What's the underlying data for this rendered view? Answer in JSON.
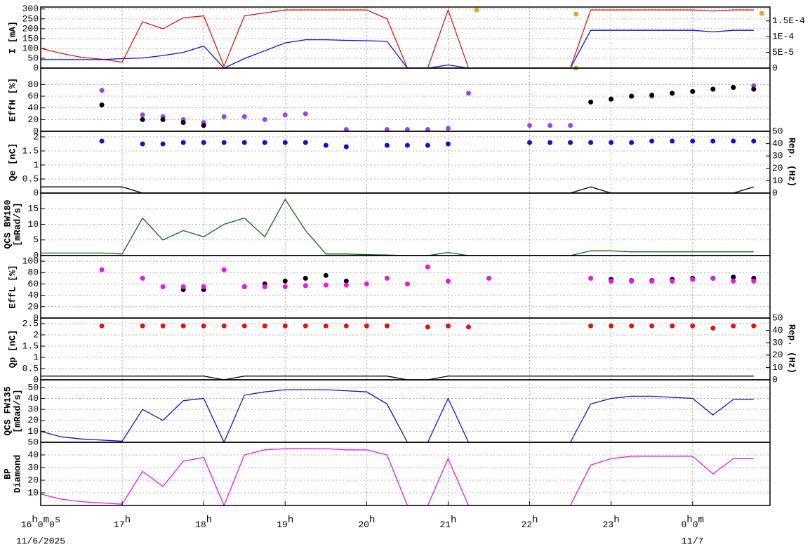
{
  "time_axis": {
    "xlim": [
      16,
      24.95
    ],
    "xticks": [
      {
        "value": 16,
        "label": "16h0m0s"
      },
      {
        "value": 17,
        "label": "17h"
      },
      {
        "value": 18,
        "label": "18h"
      },
      {
        "value": 19,
        "label": "19h"
      },
      {
        "value": 20,
        "label": "20h"
      },
      {
        "value": 21,
        "label": "21h"
      },
      {
        "value": 22,
        "label": "22h"
      },
      {
        "value": 23,
        "label": "23h"
      },
      {
        "value": 24,
        "label": "0h0m"
      }
    ],
    "date_labels": [
      {
        "value": 16,
        "label": "11/6/2025"
      },
      {
        "value": 24,
        "label": "11/7"
      }
    ]
  },
  "chart_data": [
    {
      "type": "line",
      "ylabel": [
        "I [mA]"
      ],
      "ylim": [
        0,
        310
      ],
      "yticks": [
        0,
        50,
        100,
        150,
        200,
        250,
        300
      ],
      "y2lim": [
        0,
        0.000194
      ],
      "y2ticks": [
        0,
        {
          "value": 5e-05,
          "label": "5E-5"
        },
        {
          "value": 0.0001,
          "label": "1E-4"
        },
        {
          "value": 0.00015,
          "label": "1.5E-4"
        }
      ],
      "grid": true,
      "x": [
        16,
        16.25,
        16.5,
        16.75,
        17,
        17.25,
        17.5,
        17.75,
        18,
        18.25,
        18.5,
        18.75,
        19,
        19.25,
        19.5,
        19.75,
        20,
        20.25,
        20.5,
        20.75,
        21,
        21.25,
        21.5,
        21.75,
        22,
        22.25,
        22.5,
        22.75,
        23,
        23.25,
        23.5,
        23.75,
        24,
        24.25,
        24.5,
        24.75
      ],
      "series": [
        {
          "color": "#e8120c",
          "values": [
            100,
            75,
            55,
            45,
            30,
            235,
            200,
            255,
            265,
            10,
            265,
            280,
            295,
            295,
            295,
            295,
            295,
            250,
            0,
            0,
            295,
            0,
            0,
            0,
            0,
            0,
            0,
            295,
            295,
            295,
            295,
            295,
            295,
            290,
            295,
            295
          ]
        },
        {
          "color": "#1010d8",
          "axis": "y2",
          "values": [
            2.7e-05,
            2.7e-05,
            2.7e-05,
            2.7e-05,
            3e-05,
            3.2e-05,
            4e-05,
            5e-05,
            7e-05,
            0,
            3e-05,
            5.5e-05,
            8e-05,
            9e-05,
            9e-05,
            8.8e-05,
            8.7e-05,
            8.5e-05,
            0,
            0,
            1e-05,
            0,
            0,
            0,
            0,
            0,
            0,
            0.00012,
            0.00012,
            0.00012,
            0.00012,
            0.00012,
            0.00012,
            0.000115,
            0.00012,
            0.00012
          ]
        },
        {
          "color": "#f0a020",
          "mode": "scatter",
          "x": [
            21.35,
            22.57,
            22.57,
            24.85
          ],
          "values": [
            295,
            274,
            0,
            278
          ]
        }
      ]
    },
    {
      "type": "scatter",
      "ylabel": [
        "EffH [%]"
      ],
      "ylim": [
        0,
        108
      ],
      "yticks": [
        0,
        20,
        40,
        60,
        80
      ],
      "grid": true,
      "x": [
        16,
        16.25,
        16.5,
        16.75,
        17,
        17.25,
        17.5,
        17.75,
        18,
        18.25,
        18.5,
        18.75,
        19,
        19.25,
        19.5,
        19.75,
        20,
        20.25,
        20.5,
        20.75,
        21,
        21.25,
        21.5,
        21.75,
        22,
        22.25,
        22.5,
        22.75,
        23,
        23.25,
        23.5,
        23.75,
        24,
        24.25,
        24.5,
        24.75
      ],
      "series": [
        {
          "color": "#a040f0",
          "values": [
            null,
            null,
            null,
            70,
            null,
            28,
            25,
            20,
            15,
            25,
            25,
            20,
            28,
            30,
            null,
            3,
            null,
            3,
            3,
            3,
            5,
            65,
            null,
            null,
            10,
            10,
            10,
            50,
            55,
            60,
            60,
            65,
            68,
            72,
            75,
            78
          ]
        },
        {
          "color": "#000000",
          "values": [
            null,
            null,
            null,
            45,
            null,
            20,
            20,
            15,
            10,
            null,
            null,
            null,
            null,
            null,
            null,
            null,
            null,
            null,
            null,
            null,
            null,
            null,
            null,
            null,
            null,
            null,
            null,
            50,
            55,
            60,
            62,
            65,
            68,
            72,
            75,
            72
          ]
        }
      ]
    },
    {
      "type": "scatter",
      "ylabel": [
        "Qe [nC]"
      ],
      "y2label": "Rep. (Hz)",
      "ylim": [
        0,
        2.2
      ],
      "yticks": [
        0,
        0.5,
        1,
        1.5,
        2
      ],
      "y2lim": [
        0,
        50
      ],
      "y2ticks": [
        0,
        10,
        20,
        30,
        40,
        50
      ],
      "grid": true,
      "x": [
        16,
        16.25,
        16.5,
        16.75,
        17,
        17.25,
        17.5,
        17.75,
        18,
        18.25,
        18.5,
        18.75,
        19,
        19.25,
        19.5,
        19.75,
        20,
        20.25,
        20.5,
        20.75,
        21,
        21.25,
        21.5,
        21.75,
        22,
        22.25,
        22.5,
        22.75,
        23,
        23.25,
        23.5,
        23.75,
        24,
        24.25,
        24.5,
        24.75
      ],
      "series": [
        {
          "color": "#1010d8",
          "values": [
            null,
            null,
            null,
            1.85,
            null,
            1.75,
            1.75,
            1.8,
            1.8,
            1.8,
            1.8,
            1.8,
            1.8,
            1.8,
            1.7,
            1.65,
            null,
            1.7,
            1.7,
            1.7,
            1.75,
            null,
            null,
            null,
            1.8,
            1.8,
            1.8,
            1.8,
            1.8,
            1.8,
            1.85,
            1.85,
            1.85,
            1.85,
            1.85,
            1.85
          ]
        },
        {
          "color": "#000000",
          "axis": "y2",
          "mode": "line",
          "values": [
            5,
            5,
            5,
            5,
            5,
            0,
            0,
            0,
            0,
            0,
            0,
            0,
            0,
            0,
            0,
            0,
            0,
            0,
            0,
            0,
            0,
            0,
            0,
            0,
            0,
            0,
            0,
            5,
            0,
            0,
            0,
            0,
            0,
            0,
            0,
            5
          ]
        }
      ]
    },
    {
      "type": "line",
      "ylabel": [
        "QCS BW180",
        "[mRad/s]"
      ],
      "ylim": [
        0,
        20
      ],
      "yticks": [
        0,
        5,
        10,
        15
      ],
      "grid": true,
      "x": [
        16,
        16.25,
        16.5,
        16.75,
        17,
        17.25,
        17.5,
        17.75,
        18,
        18.25,
        18.5,
        18.75,
        19,
        19.25,
        19.5,
        19.75,
        20,
        20.25,
        20.5,
        20.75,
        21,
        21.25,
        21.5,
        21.75,
        22,
        22.25,
        22.5,
        22.75,
        23,
        23.25,
        23.5,
        23.75,
        24,
        24.25,
        24.5,
        24.75
      ],
      "series": [
        {
          "color": "#0a6a0a",
          "values": [
            0.8,
            0.8,
            0.8,
            0.8,
            0.5,
            12,
            5,
            8,
            6,
            10,
            12,
            6,
            18,
            8,
            0.5,
            0.5,
            0.3,
            0.2,
            0,
            0,
            1,
            0,
            0,
            0,
            0,
            0,
            0,
            1.5,
            1.5,
            1.2,
            1.2,
            1.2,
            1.2,
            1.2,
            1.2,
            1.2
          ]
        }
      ]
    },
    {
      "type": "scatter",
      "ylabel": [
        "EffL [%]"
      ],
      "ylim": [
        0,
        110
      ],
      "yticks": [
        0,
        20,
        40,
        60,
        80,
        100
      ],
      "grid": true,
      "x": [
        16,
        16.25,
        16.5,
        16.75,
        17,
        17.25,
        17.5,
        17.75,
        18,
        18.25,
        18.5,
        18.75,
        19,
        19.25,
        19.5,
        19.75,
        20,
        20.25,
        20.5,
        20.75,
        21,
        21.25,
        21.5,
        21.75,
        22,
        22.25,
        22.5,
        22.75,
        23,
        23.25,
        23.5,
        23.75,
        24,
        24.25,
        24.5,
        24.75
      ],
      "series": [
        {
          "color": "#000000",
          "values": [
            null,
            null,
            null,
            null,
            null,
            null,
            null,
            50,
            50,
            null,
            55,
            60,
            65,
            70,
            75,
            65,
            null,
            null,
            null,
            null,
            null,
            null,
            null,
            null,
            null,
            null,
            null,
            null,
            68,
            66,
            66,
            68,
            70,
            70,
            72,
            70
          ]
        },
        {
          "color": "#f010f0",
          "values": [
            null,
            null,
            null,
            85,
            null,
            70,
            55,
            55,
            55,
            85,
            55,
            55,
            55,
            57,
            58,
            58,
            60,
            70,
            60,
            90,
            65,
            null,
            70,
            null,
            null,
            null,
            null,
            70,
            65,
            65,
            65,
            65,
            68,
            70,
            65,
            65
          ]
        }
      ]
    },
    {
      "type": "scatter",
      "ylabel": [
        "Qp [nC]"
      ],
      "y2label": "Rep. (Hz)",
      "ylim": [
        0,
        2.75
      ],
      "yticks": [
        0,
        0.5,
        1,
        1.5,
        2,
        2.5
      ],
      "y2lim": [
        0,
        50
      ],
      "y2ticks": [
        0,
        10,
        20,
        30,
        40,
        50
      ],
      "grid": true,
      "x": [
        16,
        16.25,
        16.5,
        16.75,
        17,
        17.25,
        17.5,
        17.75,
        18,
        18.25,
        18.5,
        18.75,
        19,
        19.25,
        19.5,
        19.75,
        20,
        20.25,
        20.5,
        20.75,
        21,
        21.25,
        21.5,
        21.75,
        22,
        22.25,
        22.5,
        22.75,
        23,
        23.25,
        23.5,
        23.75,
        24,
        24.25,
        24.5,
        24.75
      ],
      "series": [
        {
          "color": "#e8120c",
          "values": [
            null,
            null,
            null,
            2.4,
            null,
            2.4,
            2.4,
            2.4,
            2.4,
            2.4,
            2.4,
            2.4,
            2.4,
            2.4,
            2.4,
            2.4,
            2.4,
            2.4,
            null,
            2.35,
            2.4,
            2.35,
            null,
            null,
            null,
            null,
            null,
            2.4,
            2.4,
            2.4,
            2.4,
            2.4,
            2.4,
            2.3,
            2.4,
            2.4
          ]
        },
        {
          "color": "#000000",
          "axis": "y2",
          "mode": "line",
          "values": [
            3,
            3,
            3,
            3,
            3,
            3,
            3,
            3,
            3,
            0,
            3,
            3,
            3,
            3,
            3,
            3,
            3,
            3,
            0,
            0,
            3,
            3,
            3,
            3,
            3,
            3,
            3,
            3,
            3,
            3,
            3,
            3,
            3,
            3,
            3,
            3
          ]
        }
      ]
    },
    {
      "type": "line",
      "ylabel": [
        "QCS FW135",
        "[mRad/s]"
      ],
      "ylim": [
        0,
        57
      ],
      "yticks": [
        10,
        20,
        30,
        40,
        50
      ],
      "grid": true,
      "x": [
        16,
        16.25,
        16.5,
        16.75,
        17,
        17.25,
        17.5,
        17.75,
        18,
        18.25,
        18.5,
        18.75,
        19,
        19.25,
        19.5,
        19.75,
        20,
        20.25,
        20.5,
        20.75,
        21,
        21.25,
        21.5,
        21.75,
        22,
        22.25,
        22.5,
        22.75,
        23,
        23.25,
        23.5,
        23.75,
        24,
        24.25,
        24.5,
        24.75
      ],
      "series": [
        {
          "color": "#1010d8",
          "values": [
            10,
            5,
            3,
            2,
            1,
            30,
            20,
            38,
            40,
            0,
            43,
            46,
            48,
            48,
            48,
            47,
            46,
            35,
            0,
            0,
            40,
            0,
            0,
            0,
            0,
            0,
            0,
            35,
            40,
            42,
            42,
            41,
            40,
            25,
            39,
            39
          ]
        }
      ]
    },
    {
      "type": "line",
      "ylabel": [
        "BP",
        "Diamond"
      ],
      "ylim": [
        0,
        50
      ],
      "yticks": [
        10,
        20,
        30,
        40,
        50
      ],
      "grid": true,
      "x": [
        16,
        16.25,
        16.5,
        16.75,
        17,
        17.25,
        17.5,
        17.75,
        18,
        18.25,
        18.5,
        18.75,
        19,
        19.25,
        19.5,
        19.75,
        20,
        20.25,
        20.5,
        20.75,
        21,
        21.25,
        21.5,
        21.75,
        22,
        22.25,
        22.5,
        22.75,
        23,
        23.25,
        23.5,
        23.75,
        24,
        24.25,
        24.5,
        24.75
      ],
      "series": [
        {
          "color": "#f010f0",
          "values": [
            9,
            5,
            3,
            2,
            1,
            27,
            15,
            35,
            38,
            0,
            40,
            44,
            45,
            45,
            45,
            44,
            44,
            40,
            0,
            0,
            37,
            0,
            0,
            0,
            0,
            0,
            0,
            32,
            37,
            39,
            39,
            39,
            39,
            25,
            37,
            37
          ]
        }
      ]
    }
  ]
}
